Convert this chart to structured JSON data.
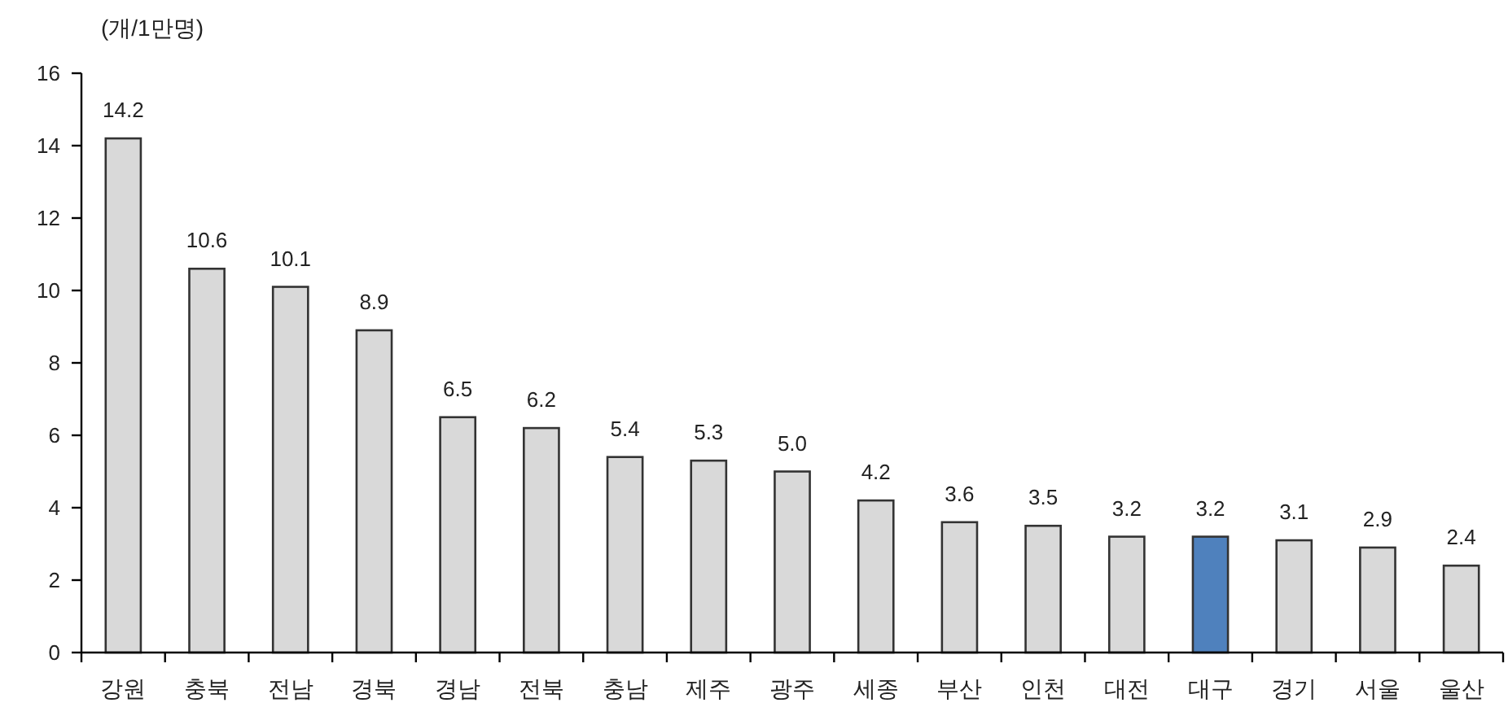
{
  "chart_data": {
    "type": "bar",
    "ylabel": "(개/1만명)",
    "categories": [
      "강원",
      "충북",
      "전남",
      "경북",
      "경남",
      "전북",
      "충남",
      "제주",
      "광주",
      "세종",
      "부산",
      "인천",
      "대전",
      "대구",
      "경기",
      "서울",
      "울산"
    ],
    "values": [
      14.2,
      10.6,
      10.1,
      8.9,
      6.5,
      6.2,
      5.4,
      5.3,
      5.0,
      4.2,
      3.6,
      3.5,
      3.2,
      3.2,
      3.1,
      2.9,
      2.4
    ],
    "value_labels": [
      "14.2",
      "10.6",
      "10.1",
      "8.9",
      "6.5",
      "6.2",
      "5.4",
      "5.3",
      "5.0",
      "4.2",
      "3.6",
      "3.5",
      "3.2",
      "3.2",
      "3.1",
      "2.9",
      "2.4"
    ],
    "colors": [
      "#d9d9d9",
      "#d9d9d9",
      "#d9d9d9",
      "#d9d9d9",
      "#d9d9d9",
      "#d9d9d9",
      "#d9d9d9",
      "#d9d9d9",
      "#d9d9d9",
      "#d9d9d9",
      "#d9d9d9",
      "#d9d9d9",
      "#d9d9d9",
      "#4f81bd",
      "#d9d9d9",
      "#d9d9d9",
      "#d9d9d9"
    ],
    "ylim": [
      0,
      16
    ],
    "yticks": [
      0,
      2,
      4,
      6,
      8,
      10,
      12,
      14,
      16
    ],
    "grid": false
  }
}
